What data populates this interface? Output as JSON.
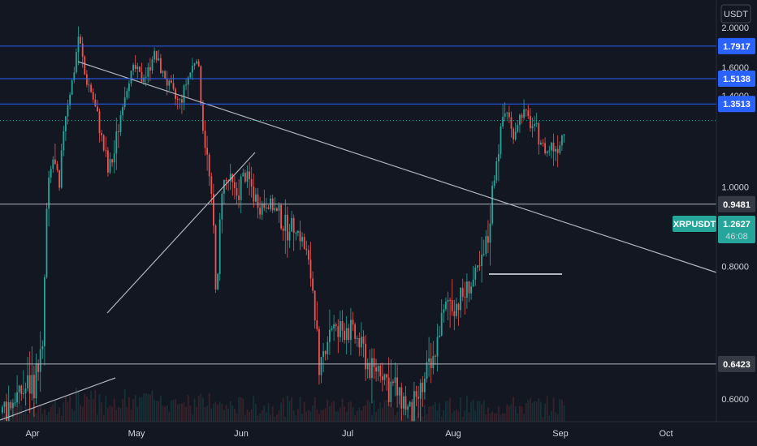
{
  "symbol": "XRPUSDT",
  "currency": "USDT",
  "countdown": "46:08",
  "chart_data": {
    "type": "candlestick",
    "x_ticks": [
      "Apr",
      "May",
      "Jun",
      "Jul",
      "Aug",
      "Sep",
      "Oct"
    ],
    "y_ticks": [
      "2.0000",
      "1.6000",
      "1.4000",
      "1.0000",
      "0.8000",
      "0.6000"
    ],
    "ylim": [
      0.55,
      2.05
    ],
    "last_price": {
      "label": "1.2627",
      "value": 1.2627
    },
    "horizontal_levels": [
      {
        "label": "1.7917",
        "value": 1.7917,
        "color": "#2962ff"
      },
      {
        "label": "1.5138",
        "value": 1.5138,
        "color": "#2962ff"
      },
      {
        "label": "1.3513",
        "value": 1.3513,
        "color": "#2962ff"
      },
      {
        "label": "0.9481",
        "value": 0.9481,
        "color": "#b2b5be"
      },
      {
        "label": "0.6423",
        "value": 0.6423,
        "color": "#b2b5be"
      }
    ],
    "colors": {
      "up": "#26a69a",
      "down": "#ef5350",
      "background": "#131722",
      "trend": "#b2b5be",
      "level": "#2962ff",
      "price_tag": "#26a69a"
    },
    "price_path": [
      [
        0,
        0.585
      ],
      [
        40,
        0.62
      ],
      [
        52,
        0.66
      ],
      [
        57,
        0.95
      ],
      [
        64,
        1.1
      ],
      [
        72,
        0.98
      ],
      [
        78,
        1.25
      ],
      [
        84,
        1.4
      ],
      [
        90,
        1.55
      ],
      [
        96,
        1.92
      ],
      [
        103,
        1.55
      ],
      [
        110,
        1.45
      ],
      [
        118,
        1.3
      ],
      [
        126,
        1.15
      ],
      [
        132,
        1.05
      ],
      [
        140,
        1.12
      ],
      [
        148,
        1.3
      ],
      [
        156,
        1.5
      ],
      [
        164,
        1.6
      ],
      [
        172,
        1.52
      ],
      [
        180,
        1.55
      ],
      [
        188,
        1.72
      ],
      [
        196,
        1.6
      ],
      [
        204,
        1.5
      ],
      [
        212,
        1.4
      ],
      [
        220,
        1.35
      ],
      [
        228,
        1.48
      ],
      [
        236,
        1.6
      ],
      [
        242,
        1.7
      ],
      [
        248,
        1.25
      ],
      [
        256,
        1.05
      ],
      [
        262,
        0.88
      ],
      [
        266,
        0.72
      ],
      [
        272,
        1.0
      ],
      [
        280,
        1.02
      ],
      [
        290,
        0.97
      ],
      [
        300,
        1.05
      ],
      [
        310,
        0.99
      ],
      [
        320,
        0.94
      ],
      [
        330,
        0.96
      ],
      [
        340,
        0.92
      ],
      [
        350,
        0.88
      ],
      [
        360,
        0.9
      ],
      [
        370,
        0.86
      ],
      [
        380,
        0.8
      ],
      [
        386,
        0.74
      ],
      [
        392,
        0.62
      ],
      [
        398,
        0.66
      ],
      [
        406,
        0.7
      ],
      [
        416,
        0.68
      ],
      [
        426,
        0.7
      ],
      [
        436,
        0.68
      ],
      [
        446,
        0.66
      ],
      [
        456,
        0.63
      ],
      [
        466,
        0.64
      ],
      [
        476,
        0.62
      ],
      [
        486,
        0.61
      ],
      [
        496,
        0.6
      ],
      [
        506,
        0.58
      ],
      [
        514,
        0.6
      ],
      [
        522,
        0.62
      ],
      [
        532,
        0.64
      ],
      [
        542,
        0.7
      ],
      [
        552,
        0.74
      ],
      [
        562,
        0.73
      ],
      [
        572,
        0.75
      ],
      [
        582,
        0.77
      ],
      [
        592,
        0.8
      ],
      [
        600,
        0.86
      ],
      [
        606,
        1.0
      ],
      [
        612,
        1.13
      ],
      [
        618,
        1.28
      ],
      [
        624,
        1.32
      ],
      [
        630,
        1.18
      ],
      [
        636,
        1.25
      ],
      [
        642,
        1.3
      ],
      [
        648,
        1.28
      ],
      [
        654,
        1.24
      ],
      [
        660,
        1.2
      ],
      [
        666,
        1.16
      ],
      [
        672,
        1.12
      ],
      [
        678,
        1.15
      ],
      [
        684,
        1.14
      ],
      [
        690,
        1.18
      ],
      [
        696,
        1.26
      ]
    ]
  }
}
